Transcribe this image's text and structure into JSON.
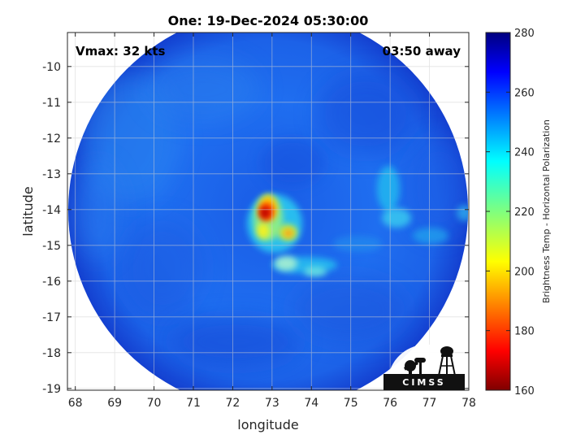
{
  "title": "One: 19-Dec-2024 05:30:00",
  "vmax_label": "Vmax: 32 kts",
  "time_label": "03:50 away",
  "logo_text": "CIMSS",
  "map": {
    "xlabel": "longitude",
    "ylabel": "latitude",
    "xlim": [
      67.8,
      78
    ],
    "ylim": [
      -19.05,
      -9.05
    ],
    "xticks": [
      68,
      69,
      70,
      71,
      72,
      73,
      74,
      75,
      76,
      77,
      78
    ],
    "yticks": [
      -10,
      -11,
      -12,
      -13,
      -14,
      -15,
      -16,
      -17,
      -18,
      -19
    ],
    "swath_center": [
      72.65,
      -14.45
    ],
    "swath_radius_deg": 5.15,
    "grid": true
  },
  "colorbar": {
    "label": "Brightness Temp - Horizontal Polarization",
    "min": 160,
    "max": 280,
    "ticks": [
      160,
      180,
      200,
      220,
      240,
      260,
      280
    ],
    "colormap": "jet"
  },
  "features": [
    {
      "name": "core",
      "lon": 72.75,
      "lat": -14.1,
      "tb": 172
    },
    {
      "name": "core-band",
      "lon": 72.65,
      "lat": -14.65,
      "tb": 205
    },
    {
      "name": "east-cell",
      "lon": 73.35,
      "lat": -14.7,
      "tb": 205
    },
    {
      "name": "south-band",
      "lon": 73.5,
      "lat": -15.8,
      "tb": 232
    },
    {
      "name": "east-band",
      "lon": 75.8,
      "lat": -13.3,
      "tb": 235
    }
  ]
}
